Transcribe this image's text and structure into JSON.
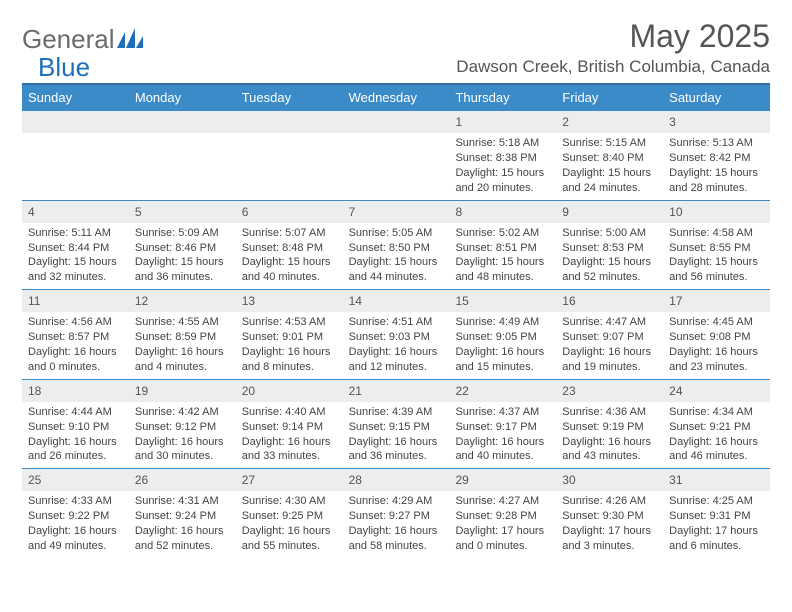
{
  "header": {
    "logo_general": "General",
    "logo_blue": "Blue",
    "month_title": "May 2025",
    "location": "Dawson Creek, British Columbia, Canada"
  },
  "colors": {
    "header_bg": "#3b8bc9",
    "header_border": "#2f6fa3",
    "daynum_bg": "#eceded",
    "text": "#444444",
    "logo_blue": "#1d6fb8",
    "logo_gray": "#6b6b6b"
  },
  "weekdays": [
    "Sunday",
    "Monday",
    "Tuesday",
    "Wednesday",
    "Thursday",
    "Friday",
    "Saturday"
  ],
  "weeks": [
    [
      {
        "n": "",
        "empty": true
      },
      {
        "n": "",
        "empty": true
      },
      {
        "n": "",
        "empty": true
      },
      {
        "n": "",
        "empty": true
      },
      {
        "n": "1",
        "sunrise": "Sunrise: 5:18 AM",
        "sunset": "Sunset: 8:38 PM",
        "day1": "Daylight: 15 hours",
        "day2": "and 20 minutes."
      },
      {
        "n": "2",
        "sunrise": "Sunrise: 5:15 AM",
        "sunset": "Sunset: 8:40 PM",
        "day1": "Daylight: 15 hours",
        "day2": "and 24 minutes."
      },
      {
        "n": "3",
        "sunrise": "Sunrise: 5:13 AM",
        "sunset": "Sunset: 8:42 PM",
        "day1": "Daylight: 15 hours",
        "day2": "and 28 minutes."
      }
    ],
    [
      {
        "n": "4",
        "sunrise": "Sunrise: 5:11 AM",
        "sunset": "Sunset: 8:44 PM",
        "day1": "Daylight: 15 hours",
        "day2": "and 32 minutes."
      },
      {
        "n": "5",
        "sunrise": "Sunrise: 5:09 AM",
        "sunset": "Sunset: 8:46 PM",
        "day1": "Daylight: 15 hours",
        "day2": "and 36 minutes."
      },
      {
        "n": "6",
        "sunrise": "Sunrise: 5:07 AM",
        "sunset": "Sunset: 8:48 PM",
        "day1": "Daylight: 15 hours",
        "day2": "and 40 minutes."
      },
      {
        "n": "7",
        "sunrise": "Sunrise: 5:05 AM",
        "sunset": "Sunset: 8:50 PM",
        "day1": "Daylight: 15 hours",
        "day2": "and 44 minutes."
      },
      {
        "n": "8",
        "sunrise": "Sunrise: 5:02 AM",
        "sunset": "Sunset: 8:51 PM",
        "day1": "Daylight: 15 hours",
        "day2": "and 48 minutes."
      },
      {
        "n": "9",
        "sunrise": "Sunrise: 5:00 AM",
        "sunset": "Sunset: 8:53 PM",
        "day1": "Daylight: 15 hours",
        "day2": "and 52 minutes."
      },
      {
        "n": "10",
        "sunrise": "Sunrise: 4:58 AM",
        "sunset": "Sunset: 8:55 PM",
        "day1": "Daylight: 15 hours",
        "day2": "and 56 minutes."
      }
    ],
    [
      {
        "n": "11",
        "sunrise": "Sunrise: 4:56 AM",
        "sunset": "Sunset: 8:57 PM",
        "day1": "Daylight: 16 hours",
        "day2": "and 0 minutes."
      },
      {
        "n": "12",
        "sunrise": "Sunrise: 4:55 AM",
        "sunset": "Sunset: 8:59 PM",
        "day1": "Daylight: 16 hours",
        "day2": "and 4 minutes."
      },
      {
        "n": "13",
        "sunrise": "Sunrise: 4:53 AM",
        "sunset": "Sunset: 9:01 PM",
        "day1": "Daylight: 16 hours",
        "day2": "and 8 minutes."
      },
      {
        "n": "14",
        "sunrise": "Sunrise: 4:51 AM",
        "sunset": "Sunset: 9:03 PM",
        "day1": "Daylight: 16 hours",
        "day2": "and 12 minutes."
      },
      {
        "n": "15",
        "sunrise": "Sunrise: 4:49 AM",
        "sunset": "Sunset: 9:05 PM",
        "day1": "Daylight: 16 hours",
        "day2": "and 15 minutes."
      },
      {
        "n": "16",
        "sunrise": "Sunrise: 4:47 AM",
        "sunset": "Sunset: 9:07 PM",
        "day1": "Daylight: 16 hours",
        "day2": "and 19 minutes."
      },
      {
        "n": "17",
        "sunrise": "Sunrise: 4:45 AM",
        "sunset": "Sunset: 9:08 PM",
        "day1": "Daylight: 16 hours",
        "day2": "and 23 minutes."
      }
    ],
    [
      {
        "n": "18",
        "sunrise": "Sunrise: 4:44 AM",
        "sunset": "Sunset: 9:10 PM",
        "day1": "Daylight: 16 hours",
        "day2": "and 26 minutes."
      },
      {
        "n": "19",
        "sunrise": "Sunrise: 4:42 AM",
        "sunset": "Sunset: 9:12 PM",
        "day1": "Daylight: 16 hours",
        "day2": "and 30 minutes."
      },
      {
        "n": "20",
        "sunrise": "Sunrise: 4:40 AM",
        "sunset": "Sunset: 9:14 PM",
        "day1": "Daylight: 16 hours",
        "day2": "and 33 minutes."
      },
      {
        "n": "21",
        "sunrise": "Sunrise: 4:39 AM",
        "sunset": "Sunset: 9:15 PM",
        "day1": "Daylight: 16 hours",
        "day2": "and 36 minutes."
      },
      {
        "n": "22",
        "sunrise": "Sunrise: 4:37 AM",
        "sunset": "Sunset: 9:17 PM",
        "day1": "Daylight: 16 hours",
        "day2": "and 40 minutes."
      },
      {
        "n": "23",
        "sunrise": "Sunrise: 4:36 AM",
        "sunset": "Sunset: 9:19 PM",
        "day1": "Daylight: 16 hours",
        "day2": "and 43 minutes."
      },
      {
        "n": "24",
        "sunrise": "Sunrise: 4:34 AM",
        "sunset": "Sunset: 9:21 PM",
        "day1": "Daylight: 16 hours",
        "day2": "and 46 minutes."
      }
    ],
    [
      {
        "n": "25",
        "sunrise": "Sunrise: 4:33 AM",
        "sunset": "Sunset: 9:22 PM",
        "day1": "Daylight: 16 hours",
        "day2": "and 49 minutes."
      },
      {
        "n": "26",
        "sunrise": "Sunrise: 4:31 AM",
        "sunset": "Sunset: 9:24 PM",
        "day1": "Daylight: 16 hours",
        "day2": "and 52 minutes."
      },
      {
        "n": "27",
        "sunrise": "Sunrise: 4:30 AM",
        "sunset": "Sunset: 9:25 PM",
        "day1": "Daylight: 16 hours",
        "day2": "and 55 minutes."
      },
      {
        "n": "28",
        "sunrise": "Sunrise: 4:29 AM",
        "sunset": "Sunset: 9:27 PM",
        "day1": "Daylight: 16 hours",
        "day2": "and 58 minutes."
      },
      {
        "n": "29",
        "sunrise": "Sunrise: 4:27 AM",
        "sunset": "Sunset: 9:28 PM",
        "day1": "Daylight: 17 hours",
        "day2": "and 0 minutes."
      },
      {
        "n": "30",
        "sunrise": "Sunrise: 4:26 AM",
        "sunset": "Sunset: 9:30 PM",
        "day1": "Daylight: 17 hours",
        "day2": "and 3 minutes."
      },
      {
        "n": "31",
        "sunrise": "Sunrise: 4:25 AM",
        "sunset": "Sunset: 9:31 PM",
        "day1": "Daylight: 17 hours",
        "day2": "and 6 minutes."
      }
    ]
  ]
}
